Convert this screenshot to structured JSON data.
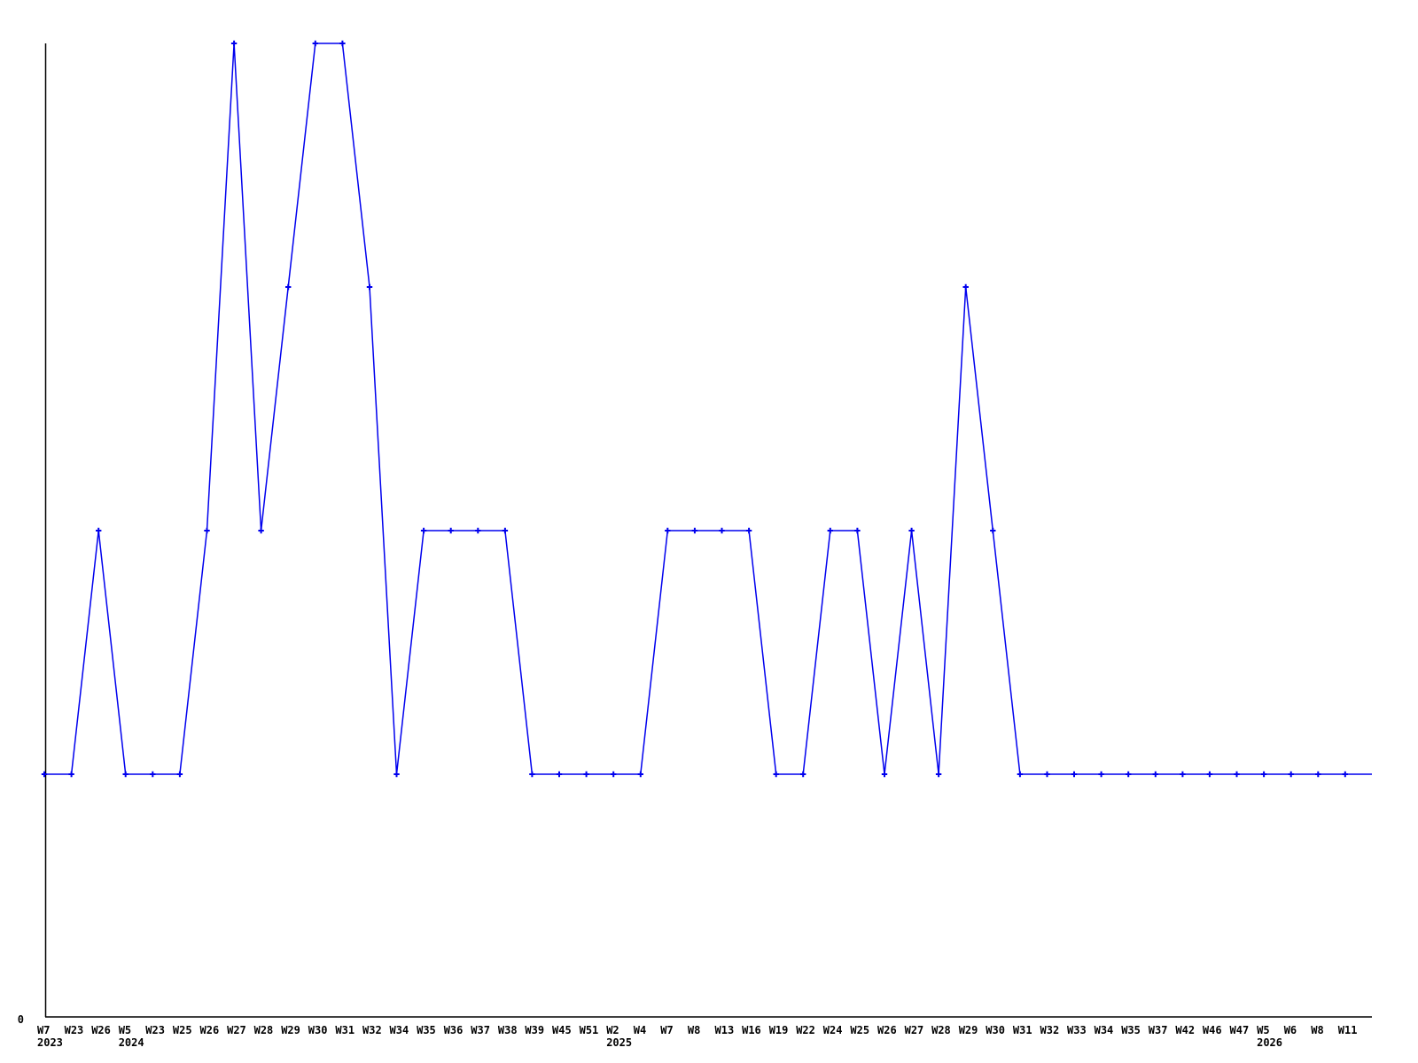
{
  "chart_data": {
    "type": "line",
    "title": "",
    "xlabel": "",
    "ylabel": "",
    "ylim": [
      0,
      4
    ],
    "grid": false,
    "legend": false,
    "line_color": "#0000ee",
    "axis_color": "#000000",
    "marker": "plus",
    "y_axis_visible_tick_labels": [
      "0"
    ],
    "line_extends_to_right_edge": true,
    "categories": [
      "W7",
      "W23",
      "W26",
      "W5",
      "W23",
      "W25",
      "W26",
      "W27",
      "W28",
      "W29",
      "W30",
      "W31",
      "W32",
      "W34",
      "W35",
      "W36",
      "W37",
      "W38",
      "W39",
      "W45",
      "W51",
      "W2",
      "W4",
      "W7",
      "W8",
      "W13",
      "W16",
      "W19",
      "W22",
      "W24",
      "W25",
      "W26",
      "W27",
      "W28",
      "W29",
      "W30",
      "W31",
      "W32",
      "W33",
      "W34",
      "W35",
      "W37",
      "W42",
      "W46",
      "W47",
      "W5",
      "W6",
      "W8",
      "W11"
    ],
    "values": [
      1,
      1,
      2,
      1,
      1,
      1,
      2,
      4,
      2,
      3,
      4,
      4,
      3,
      1,
      2,
      2,
      2,
      2,
      1,
      1,
      1,
      1,
      1,
      2,
      2,
      2,
      2,
      1,
      1,
      2,
      2,
      1,
      2,
      1,
      3,
      2,
      1,
      1,
      1,
      1,
      1,
      1,
      1,
      1,
      1,
      1,
      1,
      1,
      1
    ],
    "year_row": [
      {
        "index": 0,
        "year": "2023"
      },
      {
        "index": 3,
        "year": "2024"
      },
      {
        "index": 21,
        "year": "2025"
      },
      {
        "index": 45,
        "year": "2026"
      }
    ]
  }
}
